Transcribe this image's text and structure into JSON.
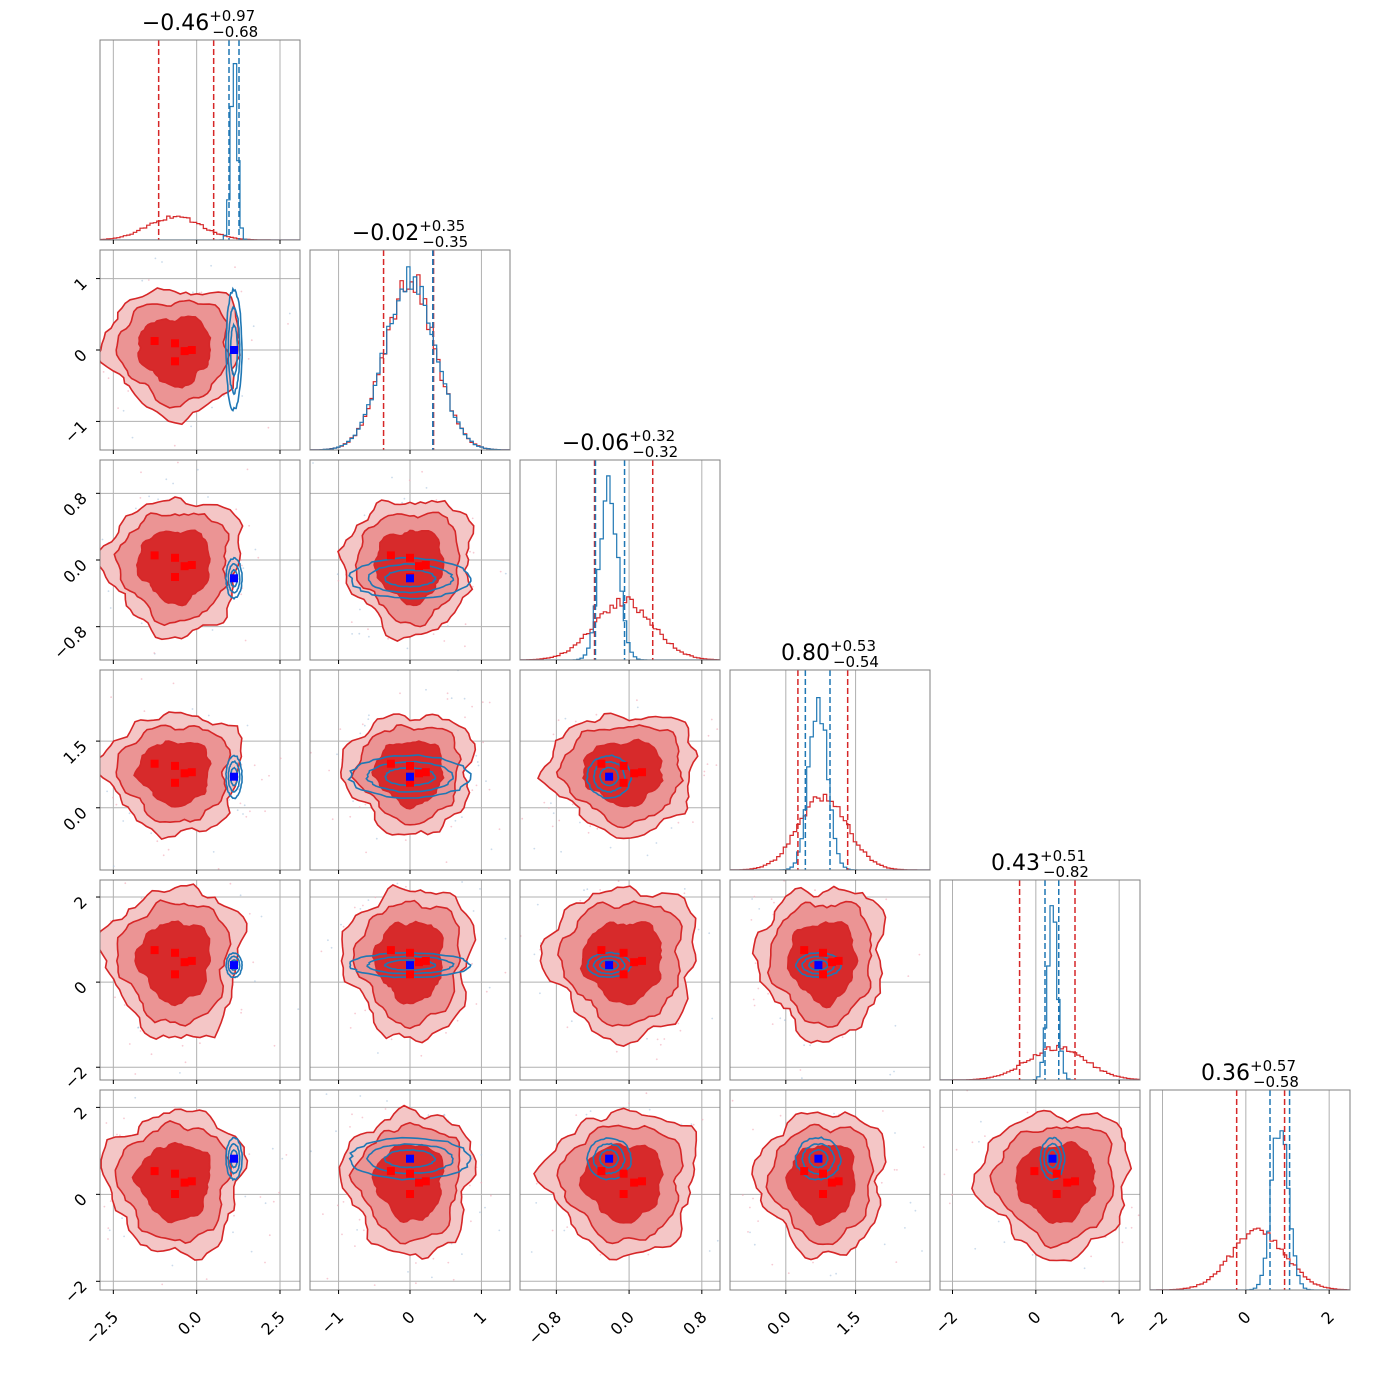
{
  "chart_data": {
    "type": "corner",
    "grid": true,
    "colors": {
      "red_series": "#d62728",
      "blue_series": "#1f77b4",
      "red_marker": "#ff0000",
      "blue_marker": "#0000ff",
      "red_fill_light": "#f4c6c6",
      "red_fill_mid": "#eb9494",
      "red_fill_dark": "#d72a2b",
      "grid": "#b0b0b0"
    },
    "params": [
      {
        "title": "−0.46",
        "up": "+0.97",
        "lo": "−0.68",
        "range": [
          -2.9,
          3.1
        ],
        "ticks": [
          {
            "v": -2.5,
            "l": "−2.5"
          },
          {
            "v": 0.0,
            "l": "0.0"
          },
          {
            "v": 2.5,
            "l": "2.5"
          }
        ],
        "red": {
          "mu": -0.65,
          "sd": 0.8
        },
        "blue": {
          "mu": 1.12,
          "sd": 0.1
        },
        "red_q": [
          -1.14,
          0.51
        ],
        "blue_q": [
          0.97,
          1.27
        ]
      },
      {
        "title": "−0.02",
        "up": "+0.35",
        "lo": "−0.35",
        "range": [
          -1.4,
          1.4
        ],
        "ticks": [
          {
            "v": -1,
            "l": "−1"
          },
          {
            "v": 0,
            "l": "0"
          },
          {
            "v": 1,
            "l": "1"
          }
        ],
        "red": {
          "mu": 0.0,
          "sd": 0.35
        },
        "blue": {
          "mu": 0.0,
          "sd": 0.35
        },
        "red_q": [
          -0.37,
          0.33
        ],
        "blue_q": [
          0.32,
          0.32
        ]
      },
      {
        "title": "−0.06",
        "up": "+0.32",
        "lo": "−0.32",
        "range": [
          -1.2,
          1.0
        ],
        "ticks": [
          {
            "v": -0.8,
            "l": "−0.8"
          },
          {
            "v": 0.0,
            "l": "0.0"
          },
          {
            "v": 0.8,
            "l": "0.8"
          }
        ],
        "red": {
          "mu": -0.06,
          "sd": 0.32
        },
        "blue": {
          "mu": -0.22,
          "sd": 0.1
        },
        "red_q": [
          -0.38,
          0.26
        ],
        "blue_q": [
          -0.37,
          -0.05
        ]
      },
      {
        "title": "0.80",
        "up": "+0.53",
        "lo": "−0.54",
        "range": [
          -1.2,
          3.1
        ],
        "ticks": [
          {
            "v": 0.0,
            "l": "0.0"
          },
          {
            "v": 1.5,
            "l": "1.5"
          }
        ],
        "red": {
          "mu": 0.8,
          "sd": 0.53
        },
        "blue": {
          "mu": 0.7,
          "sd": 0.2
        },
        "red_q": [
          0.26,
          1.33
        ],
        "blue_q": [
          0.42,
          0.95
        ]
      },
      {
        "title": "0.43",
        "up": "+0.51",
        "lo": "−0.82",
        "range": [
          -2.3,
          2.5
        ],
        "ticks": [
          {
            "v": -2,
            "l": "−2"
          },
          {
            "v": 0,
            "l": "0"
          },
          {
            "v": 2,
            "l": "2"
          }
        ],
        "red": {
          "mu": 0.5,
          "sd": 0.7
        },
        "blue": {
          "mu": 0.4,
          "sd": 0.12
        },
        "red_q": [
          -0.39,
          0.94
        ],
        "blue_q": [
          0.22,
          0.55
        ]
      },
      {
        "title": "0.36",
        "up": "+0.57",
        "lo": "−0.58",
        "range": [
          -2.3,
          2.5
        ],
        "ticks": [
          {
            "v": -2,
            "l": "−2"
          },
          {
            "v": 0,
            "l": "0"
          },
          {
            "v": 2,
            "l": "2"
          }
        ],
        "red": {
          "mu": 0.3,
          "sd": 0.65
        },
        "blue": {
          "mu": 0.82,
          "sd": 0.2
        },
        "red_q": [
          -0.22,
          0.93
        ],
        "blue_q": [
          0.58,
          1.05
        ]
      }
    ],
    "y_params": [
      {
        "range": [
          -1.4,
          1.4
        ],
        "ticks": [
          {
            "v": -1,
            "l": "−1"
          },
          {
            "v": 0,
            "l": "0"
          },
          {
            "v": 1,
            "l": "1"
          }
        ]
      },
      {
        "range": [
          -1.2,
          1.2
        ],
        "ticks": [
          {
            "v": -0.8,
            "l": "−0.8"
          },
          {
            "v": 0.0,
            "l": "0.0"
          },
          {
            "v": 0.8,
            "l": "0.8"
          }
        ]
      },
      {
        "range": [
          -1.4,
          3.1
        ],
        "ticks": [
          {
            "v": 0.0,
            "l": "0.0"
          },
          {
            "v": 1.5,
            "l": "1.5"
          }
        ]
      },
      {
        "range": [
          -2.3,
          2.4
        ],
        "ticks": [
          {
            "v": -2,
            "l": "−2"
          },
          {
            "v": 0,
            "l": "0"
          },
          {
            "v": 2,
            "l": "2"
          }
        ]
      },
      {
        "range": [
          -2.2,
          2.4
        ],
        "ticks": [
          {
            "v": -2,
            "l": "−2"
          },
          {
            "v": 0,
            "l": "0"
          },
          {
            "v": 2,
            "l": "2"
          }
        ]
      }
    ],
    "red_markers": [
      [
        -0.7,
        0.0
      ],
      [
        0.4,
        0.05
      ],
      [
        0.0,
        0.3
      ],
      [
        0.0,
        0.5
      ],
      [
        0.85,
        0.4
      ]
    ],
    "blue_marker": [
      1.12,
      0.0,
      -0.22,
      0.7,
      0.4,
      0.82
    ]
  }
}
